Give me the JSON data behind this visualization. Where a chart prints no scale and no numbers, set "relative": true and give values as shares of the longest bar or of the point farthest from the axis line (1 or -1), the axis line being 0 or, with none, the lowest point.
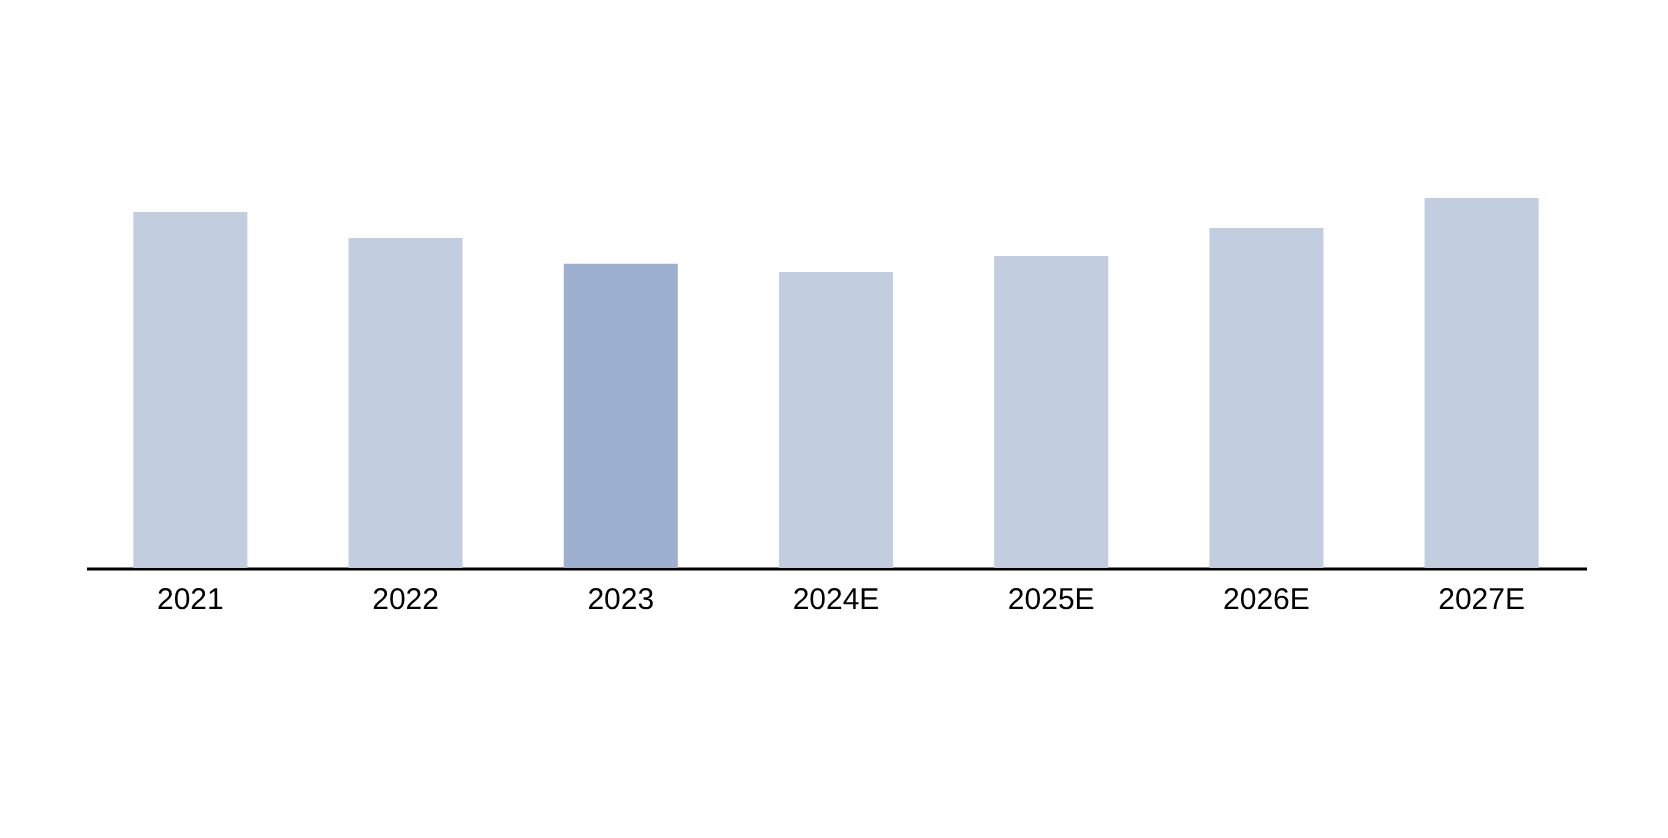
{
  "chart_data": {
    "type": "bar",
    "relative": true,
    "categories": [
      "2021",
      "2022",
      "2023",
      "2024E",
      "2025E",
      "2026E",
      "2027E"
    ],
    "values": [
      0.962,
      0.892,
      0.822,
      0.8,
      0.843,
      0.919,
      1
    ],
    "colors": [
      "#c3cde0",
      "#c3cde0",
      "#9eb0cf",
      "#c3cde0",
      "#c3cde0",
      "#c3cde0",
      "#c3cde0"
    ]
  }
}
